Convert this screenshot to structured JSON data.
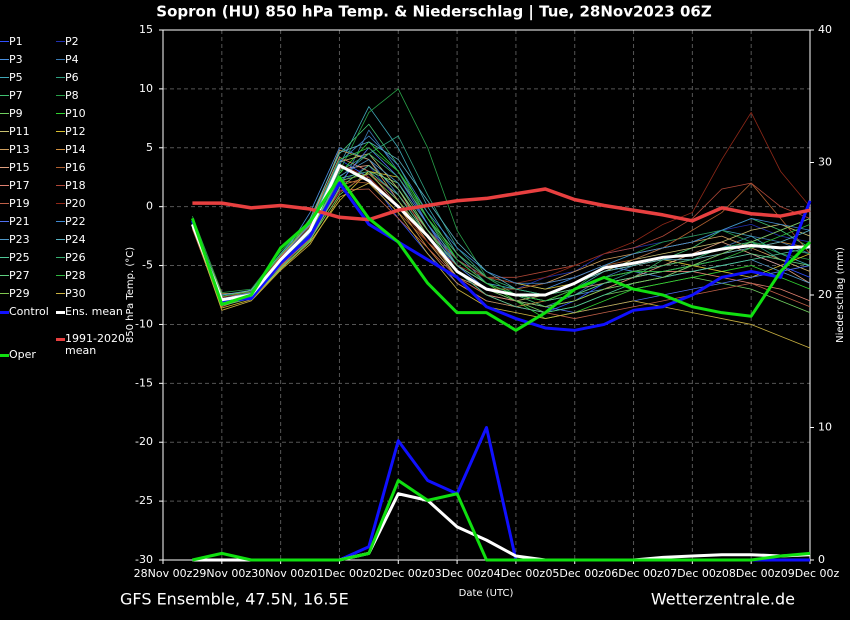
{
  "chart_data": {
    "type": "line",
    "title": "Sopron  (HU)  850 hPa Temp. & Niederschlag | Tue, 28Nov2023 06Z",
    "subtitle": "GFS Ensemble, 47.5N, 16.5E",
    "source": "Wetterzentrale.de",
    "x_label": "Date (UTC)",
    "y_label": "850 hPa Temp. (°C)",
    "y2_label": "Niederschlag (mm)",
    "grid": true,
    "xlim": [
      0,
      264
    ],
    "xticks": [
      {
        "value": 0,
        "label": "28Nov 00z"
      },
      {
        "value": 24,
        "label": "29Nov 00z"
      },
      {
        "value": 48,
        "label": "30Nov 00z"
      },
      {
        "value": 72,
        "label": "01Dec 00z"
      },
      {
        "value": 96,
        "label": "02Dec 00z"
      },
      {
        "value": 120,
        "label": "03Dec 00z"
      },
      {
        "value": 144,
        "label": "04Dec 00z"
      },
      {
        "value": 168,
        "label": "05Dec 00z"
      },
      {
        "value": 192,
        "label": "06Dec 00z"
      },
      {
        "value": 216,
        "label": "07Dec 00z"
      },
      {
        "value": 240,
        "label": "08Dec 00z"
      },
      {
        "value": 264,
        "label": "09Dec 00z"
      }
    ],
    "ylim": [
      -30,
      15
    ],
    "yticks": [
      -30,
      -25,
      -20,
      -15,
      -10,
      -5,
      0,
      5,
      10,
      15
    ],
    "y2lim": [
      0,
      40
    ],
    "y2ticks": [
      0,
      10,
      20,
      30,
      40
    ],
    "x": [
      12,
      24,
      36,
      48,
      60,
      72,
      84,
      96,
      108,
      120,
      132,
      144,
      156,
      168,
      180,
      192,
      204,
      216,
      228,
      240,
      252,
      264
    ],
    "series": [
      {
        "name": "P1",
        "color": "#3050ff",
        "values": [
          -1.2,
          -7.5,
          -7.2,
          -4.0,
          -1.5,
          4.0,
          2.5,
          -1.0,
          -4.0,
          -6.5,
          -8.0,
          -8.5,
          -9.0,
          -8.0,
          -6.5,
          -6.0,
          -5.5,
          -5.0,
          -4.5,
          -4.0,
          -5.0,
          -6.0
        ]
      },
      {
        "name": "P2",
        "color": "#2030b0",
        "values": [
          -1.5,
          -8.2,
          -7.0,
          -5.0,
          -2.0,
          2.0,
          3.5,
          0.5,
          -2.5,
          -5.0,
          -6.5,
          -7.0,
          -6.0,
          -5.5,
          -4.0,
          -3.5,
          -3.0,
          -2.5,
          -2.0,
          -1.5,
          -2.5,
          -3.0
        ]
      },
      {
        "name": "P3",
        "color": "#4a90e0",
        "values": [
          -1.0,
          -7.8,
          -7.5,
          -4.5,
          -0.5,
          5.0,
          4.0,
          1.0,
          -2.0,
          -4.5,
          -6.0,
          -6.5,
          -7.0,
          -6.0,
          -5.0,
          -5.5,
          -6.0,
          -5.0,
          -4.0,
          -3.0,
          -2.0,
          -1.0
        ]
      },
      {
        "name": "P4",
        "color": "#3a78b0",
        "values": [
          -1.3,
          -8.0,
          -7.8,
          -5.2,
          -2.5,
          1.5,
          6.5,
          3.0,
          -1.5,
          -5.5,
          -7.5,
          -8.0,
          -8.5,
          -7.5,
          -6.0,
          -5.0,
          -4.5,
          -4.0,
          -3.5,
          -2.5,
          -3.0,
          -4.0
        ]
      },
      {
        "name": "P5",
        "color": "#40a8b8",
        "values": [
          -1.6,
          -8.1,
          -7.3,
          -4.2,
          -1.8,
          3.5,
          8.5,
          5.0,
          0.0,
          -4.0,
          -6.5,
          -7.0,
          -7.5,
          -7.0,
          -5.5,
          -4.5,
          -3.5,
          -3.0,
          -2.0,
          -2.5,
          -4.0,
          -5.0
        ]
      },
      {
        "name": "P6",
        "color": "#30a080",
        "values": [
          -1.4,
          -7.9,
          -7.6,
          -4.8,
          -2.2,
          2.5,
          4.5,
          6.0,
          1.0,
          -3.5,
          -6.0,
          -7.5,
          -8.0,
          -7.5,
          -6.5,
          -5.5,
          -5.0,
          -4.5,
          -3.5,
          -3.0,
          -4.5,
          -5.5
        ]
      },
      {
        "name": "P7",
        "color": "#40c070",
        "values": [
          -1.1,
          -7.6,
          -7.4,
          -4.4,
          -1.0,
          4.5,
          7.0,
          3.5,
          -1.0,
          -5.0,
          -7.0,
          -7.5,
          -8.5,
          -8.0,
          -7.0,
          -6.0,
          -4.5,
          -3.5,
          -2.0,
          -1.0,
          -2.0,
          -3.5
        ]
      },
      {
        "name": "P8",
        "color": "#28a048",
        "values": [
          -0.8,
          -7.3,
          -7.0,
          -3.8,
          -1.2,
          3.0,
          8.0,
          10.0,
          5.0,
          -2.0,
          -6.0,
          -7.5,
          -8.0,
          -7.0,
          -5.0,
          -4.0,
          -3.0,
          -2.5,
          -2.0,
          -3.0,
          -4.0,
          -4.5
        ]
      },
      {
        "name": "P9",
        "color": "#70d060",
        "values": [
          -1.7,
          -8.3,
          -7.7,
          -5.0,
          -2.8,
          1.0,
          3.0,
          2.0,
          -2.0,
          -5.5,
          -7.0,
          -8.0,
          -9.0,
          -8.5,
          -7.5,
          -7.0,
          -6.5,
          -6.0,
          -6.5,
          -7.0,
          -8.0,
          -9.0
        ]
      },
      {
        "name": "P10",
        "color": "#30d030",
        "values": [
          -1.0,
          -8.0,
          -7.4,
          -4.6,
          -2.0,
          2.8,
          5.5,
          3.0,
          -0.5,
          -4.5,
          -6.5,
          -8.0,
          -9.5,
          -9.0,
          -8.0,
          -7.0,
          -6.5,
          -6.0,
          -5.5,
          -5.0,
          -6.0,
          -7.0
        ]
      },
      {
        "name": "P11",
        "color": "#c8c070",
        "values": [
          -1.5,
          -7.7,
          -7.1,
          -4.1,
          -1.6,
          3.8,
          4.5,
          1.5,
          -2.5,
          -6.0,
          -7.5,
          -8.0,
          -7.5,
          -6.5,
          -5.5,
          -4.5,
          -4.0,
          -3.5,
          -3.0,
          -2.0,
          -1.5,
          -2.5
        ]
      },
      {
        "name": "P12",
        "color": "#d8c030",
        "values": [
          -1.8,
          -8.6,
          -7.9,
          -5.3,
          -3.0,
          0.5,
          3.0,
          2.5,
          -1.0,
          -4.0,
          -6.0,
          -6.5,
          -7.0,
          -6.5,
          -5.5,
          -5.0,
          -4.5,
          -5.0,
          -5.5,
          -6.0,
          -5.0,
          -4.0
        ]
      },
      {
        "name": "P13",
        "color": "#d0a060",
        "values": [
          -1.2,
          -7.4,
          -7.3,
          -4.3,
          -1.4,
          4.8,
          4.0,
          0.5,
          -3.0,
          -6.0,
          -7.0,
          -7.0,
          -6.5,
          -5.5,
          -4.5,
          -4.0,
          -3.5,
          -3.0,
          -2.5,
          -3.5,
          -4.5,
          -5.5
        ]
      },
      {
        "name": "P14",
        "color": "#d09040",
        "values": [
          -1.4,
          -8.4,
          -7.6,
          -5.1,
          -2.6,
          1.8,
          2.5,
          0.0,
          -3.5,
          -6.5,
          -8.0,
          -8.5,
          -8.0,
          -7.0,
          -6.0,
          -5.5,
          -5.0,
          -4.5,
          -4.0,
          -3.5,
          -3.0,
          -3.5
        ]
      },
      {
        "name": "P15",
        "color": "#e0a080",
        "values": [
          -1.3,
          -7.9,
          -7.5,
          -4.7,
          -1.9,
          3.2,
          3.5,
          1.5,
          -2.0,
          -5.0,
          -6.5,
          -7.5,
          -7.5,
          -7.0,
          -6.5,
          -6.0,
          -5.0,
          -4.0,
          -3.0,
          -4.0,
          -5.0,
          -6.5
        ]
      },
      {
        "name": "P16",
        "color": "#b06030",
        "values": [
          -1.6,
          -8.0,
          -7.2,
          -4.5,
          -2.1,
          2.2,
          2.0,
          -0.5,
          -3.0,
          -5.5,
          -7.0,
          -7.0,
          -6.5,
          -6.0,
          -5.0,
          -4.5,
          -3.5,
          -2.0,
          -0.5,
          2.0,
          -1.0,
          -4.0
        ]
      },
      {
        "name": "P17",
        "color": "#e08070",
        "values": [
          -1.0,
          -7.6,
          -7.4,
          -4.2,
          -1.3,
          4.2,
          3.0,
          0.0,
          -2.5,
          -5.5,
          -7.5,
          -8.0,
          -8.5,
          -8.0,
          -7.0,
          -6.0,
          -5.5,
          -5.5,
          -6.0,
          -6.5,
          -7.0,
          -8.0
        ]
      },
      {
        "name": "P18",
        "color": "#b04838",
        "values": [
          -1.5,
          -8.2,
          -7.8,
          -4.9,
          -2.4,
          1.2,
          2.8,
          1.0,
          -2.0,
          -4.5,
          -6.0,
          -6.0,
          -5.5,
          -5.0,
          -4.0,
          -3.5,
          -2.5,
          -1.0,
          1.5,
          2.0,
          0.0,
          -1.0
        ]
      },
      {
        "name": "P19",
        "color": "#c06048",
        "values": [
          -1.9,
          -8.5,
          -7.6,
          -5.0,
          -2.7,
          1.4,
          1.5,
          -1.0,
          -3.5,
          -6.0,
          -7.5,
          -8.5,
          -9.0,
          -9.5,
          -9.0,
          -8.5,
          -8.0,
          -7.5,
          -7.0,
          -6.5,
          -7.5,
          -8.5
        ]
      },
      {
        "name": "P20",
        "color": "#902818",
        "values": [
          -1.2,
          -7.7,
          -7.2,
          -4.3,
          -1.7,
          3.6,
          2.5,
          0.0,
          -3.0,
          -5.0,
          -6.0,
          -6.5,
          -6.0,
          -5.0,
          -4.0,
          -3.0,
          -1.5,
          -0.5,
          4.0,
          8.0,
          3.0,
          0.0
        ]
      },
      {
        "name": "P21",
        "color": "#5070f0",
        "values": [
          -1.4,
          -8.1,
          -7.7,
          -4.9,
          -2.3,
          2.0,
          5.0,
          2.5,
          -1.5,
          -5.0,
          -7.0,
          -8.0,
          -8.5,
          -9.0,
          -8.5,
          -8.0,
          -7.5,
          -7.0,
          -6.5,
          -6.0,
          -5.5,
          -5.0
        ]
      },
      {
        "name": "P22",
        "color": "#4088d0",
        "values": [
          -1.1,
          -7.8,
          -7.3,
          -4.4,
          -1.5,
          3.8,
          6.0,
          3.5,
          -0.5,
          -3.5,
          -5.5,
          -6.5,
          -6.5,
          -6.0,
          -5.0,
          -4.0,
          -3.5,
          -3.0,
          -2.0,
          -1.0,
          -1.5,
          -2.0
        ]
      },
      {
        "name": "P23",
        "color": "#5098c8",
        "values": [
          -1.6,
          -8.3,
          -7.5,
          -4.6,
          -2.2,
          2.6,
          4.0,
          2.0,
          -1.5,
          -4.5,
          -6.5,
          -7.5,
          -8.0,
          -7.5,
          -7.0,
          -6.5,
          -6.0,
          -5.5,
          -5.0,
          -4.5,
          -5.5,
          -6.5
        ]
      },
      {
        "name": "P24",
        "color": "#58b0c0",
        "values": [
          -1.3,
          -7.5,
          -7.1,
          -4.0,
          -1.1,
          4.6,
          5.5,
          4.0,
          0.5,
          -3.0,
          -5.5,
          -7.0,
          -7.5,
          -6.5,
          -5.5,
          -5.0,
          -4.5,
          -4.5,
          -4.0,
          -3.5,
          -3.0,
          -2.0
        ]
      },
      {
        "name": "P25",
        "color": "#50c898",
        "values": [
          -1.5,
          -8.0,
          -7.6,
          -4.8,
          -2.0,
          2.4,
          3.0,
          1.0,
          -2.5,
          -5.5,
          -7.5,
          -8.5,
          -9.0,
          -8.5,
          -7.5,
          -6.5,
          -6.0,
          -5.5,
          -5.0,
          -4.5,
          -4.0,
          -3.5
        ]
      },
      {
        "name": "P26",
        "color": "#38b070",
        "values": [
          -1.2,
          -7.8,
          -7.4,
          -4.5,
          -1.8,
          3.0,
          4.5,
          2.5,
          -1.0,
          -4.0,
          -6.0,
          -7.0,
          -7.5,
          -7.0,
          -6.0,
          -5.5,
          -5.0,
          -4.5,
          -3.5,
          -3.0,
          -3.5,
          -4.0
        ]
      },
      {
        "name": "P27",
        "color": "#60d080",
        "values": [
          -1.7,
          -8.4,
          -7.8,
          -5.2,
          -2.9,
          1.6,
          3.5,
          1.5,
          -2.0,
          -5.0,
          -6.5,
          -7.5,
          -8.0,
          -7.5,
          -6.5,
          -6.0,
          -5.5,
          -5.0,
          -4.5,
          -4.0,
          -4.5,
          -5.0
        ]
      },
      {
        "name": "P28",
        "color": "#30b840",
        "values": [
          -1.0,
          -7.6,
          -7.2,
          -4.1,
          -1.4,
          4.0,
          5.0,
          3.0,
          -1.0,
          -4.5,
          -6.5,
          -7.5,
          -8.0,
          -7.0,
          -6.0,
          -5.5,
          -5.5,
          -5.0,
          -4.5,
          -3.5,
          -2.5,
          -1.5
        ]
      },
      {
        "name": "P29",
        "color": "#80c850",
        "values": [
          -1.4,
          -8.2,
          -7.5,
          -4.7,
          -2.1,
          2.2,
          2.8,
          0.5,
          -2.5,
          -5.5,
          -7.0,
          -8.0,
          -8.5,
          -8.0,
          -7.0,
          -6.5,
          -6.0,
          -5.0,
          -4.0,
          -3.0,
          -2.0,
          -1.0
        ]
      },
      {
        "name": "P30",
        "color": "#c8b040",
        "values": [
          -1.6,
          -8.8,
          -8.0,
          -5.4,
          -3.2,
          0.8,
          2.0,
          -0.5,
          -4.0,
          -7.0,
          -8.5,
          -9.0,
          -9.5,
          -9.0,
          -8.5,
          -8.0,
          -8.5,
          -9.0,
          -9.5,
          -10.0,
          -11.0,
          -12.0
        ]
      },
      {
        "name": "Control",
        "color": "#1010ff",
        "values": [
          -1.2,
          -8.0,
          -7.8,
          -4.8,
          -2.5,
          2.0,
          -1.5,
          -3.0,
          -4.5,
          -6.0,
          -8.5,
          -9.5,
          -10.3,
          -10.5,
          -10.0,
          -8.8,
          -8.5,
          -7.5,
          -6.0,
          -5.5,
          -6.0,
          0.5
        ],
        "precip": [
          0,
          0,
          0,
          0,
          0,
          0,
          1,
          9,
          6,
          5,
          10,
          0,
          0,
          0,
          0,
          0,
          0,
          0,
          0,
          0,
          0,
          0
        ]
      },
      {
        "name": "Ens. mean",
        "color": "#ffffff",
        "values": [
          -1.5,
          -7.9,
          -7.5,
          -4.5,
          -2.0,
          3.5,
          2.2,
          0.0,
          -2.5,
          -5.5,
          -7.0,
          -7.5,
          -7.5,
          -6.5,
          -5.2,
          -4.8,
          -4.3,
          -4.1,
          -3.6,
          -3.3,
          -3.5,
          -3.4
        ],
        "precip": [
          0,
          0,
          0,
          0,
          0,
          0,
          0.5,
          5,
          4.5,
          2.5,
          1.5,
          0.3,
          0,
          0,
          0,
          0,
          0.2,
          0.3,
          0.4,
          0.4,
          0.3,
          0.4
        ]
      },
      {
        "name": "1991-2020 mean",
        "color": "#e84040",
        "values": [
          0.3,
          0.3,
          -0.1,
          0.1,
          -0.2,
          -0.9,
          -1.1,
          -0.3,
          0.1,
          0.5,
          0.7,
          1.1,
          1.5,
          0.6,
          0.1,
          -0.3,
          -0.7,
          -1.2,
          -0.1,
          -0.6,
          -0.8,
          -0.3
        ]
      },
      {
        "name": "Oper",
        "color": "#10e010",
        "values": [
          -1.0,
          -8.3,
          -7.5,
          -3.5,
          -1.3,
          2.5,
          -1.0,
          -3.0,
          -6.5,
          -9.0,
          -9.0,
          -10.5,
          -9.0,
          -7.0,
          -6.0,
          -7.0,
          -7.5,
          -8.5,
          -9.0,
          -9.3,
          -5.5,
          -3.0
        ],
        "precip": [
          0,
          0.5,
          0,
          0,
          0,
          0,
          0.5,
          6,
          4.5,
          5,
          0,
          0,
          0,
          0,
          0,
          0,
          0,
          0,
          0,
          0,
          0.3,
          0.5
        ]
      }
    ]
  }
}
